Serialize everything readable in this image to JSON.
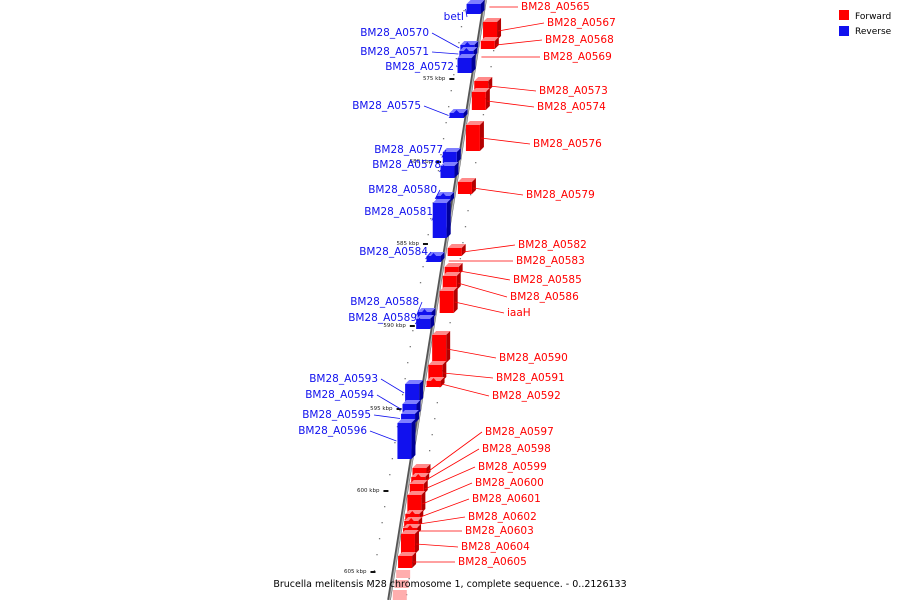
{
  "colors": {
    "forward": "#ff0000",
    "reverse": "#1111ee",
    "backbone": "#888888"
  },
  "legend": [
    {
      "key": "forward",
      "label": "Forward"
    },
    {
      "key": "reverse",
      "label": "Reverse"
    }
  ],
  "caption": "Brucella melitensis M28 chromosome 1, complete sequence. - 0..2126133",
  "ticks": [
    "575 kbp",
    "580 kbp",
    "585 kbp",
    "590 kbp",
    "595 kbp",
    "600 kbp",
    "605 kbp"
  ],
  "reverse_genes": [
    "betI",
    "BM28_A0570",
    "BM28_A0571",
    "BM28_A0572",
    "BM28_A0575",
    "BM28_A0577",
    "BM28_A0578",
    "BM28_A0580",
    "BM28_A0581",
    "BM28_A0584",
    "BM28_A0588",
    "BM28_A0589",
    "BM28_A0593",
    "BM28_A0594",
    "BM28_A0595",
    "BM28_A0596"
  ],
  "forward_genes": [
    "BM28_A0565",
    "BM28_A0567",
    "BM28_A0568",
    "BM28_A0569",
    "BM28_A0573",
    "BM28_A0574",
    "BM28_A0576",
    "BM28_A0579",
    "BM28_A0582",
    "BM28_A0583",
    "BM28_A0585",
    "BM28_A0586",
    "iaaH",
    "BM28_A0590",
    "BM28_A0591",
    "BM28_A0592",
    "BM28_A0597",
    "BM28_A0598",
    "BM28_A0599",
    "BM28_A0600",
    "BM28_A0601",
    "BM28_A0602",
    "BM28_A0603",
    "BM28_A0604",
    "BM28_A0605"
  ]
}
